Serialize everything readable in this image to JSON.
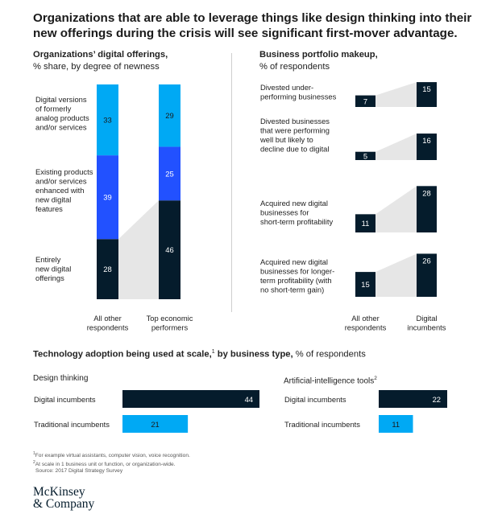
{
  "headline": "Organizations that are able to leverage things like design thinking into their new offerings during the crisis will see significant first-mover advantage.",
  "colors": {
    "navy": "#051c2c",
    "royal": "#2251ff",
    "cyan": "#00a9f4",
    "shade": "#e6e6e6",
    "divider": "#cfcfcf"
  },
  "chart_data": [
    {
      "type": "bar",
      "stacked": true,
      "title_bold": "Organizations’ digital offerings,",
      "subtitle": "% share, by degree of newness",
      "categories": [
        "All other\nrespondents",
        "Top economic\nperformers"
      ],
      "series": [
        {
          "name": "Entirely\nnew digital\nofferings",
          "values": [
            28,
            46
          ]
        },
        {
          "name": "Existing products\nand/or services\nenhanced with\nnew digital\nfeatures",
          "values": [
            39,
            25
          ]
        },
        {
          "name": "Digital versions\nof formerly\nanalog products\nand/or services",
          "values": [
            33,
            29
          ]
        }
      ],
      "ylim": [
        0,
        100
      ],
      "grid": false
    },
    {
      "type": "bar",
      "title_bold": "Business portfolio makeup,",
      "subtitle": "% of respondents",
      "categories": [
        "All other\nrespondents",
        "Digital\nincumbents"
      ],
      "rows": [
        {
          "label": "Divested under-\nperforming businesses",
          "values": [
            7,
            15
          ]
        },
        {
          "label": "Divested businesses\nthat were performing\nwell but likely to\ndecline due to digital",
          "values": [
            5,
            16
          ]
        },
        {
          "label": "Acquired new digital\nbusinesses for\nshort-term profitability",
          "values": [
            11,
            28
          ]
        },
        {
          "label": "Acquired new digital\nbusinesses for longer-\nterm profitability (with\nno short-term gain)",
          "values": [
            15,
            26
          ]
        }
      ]
    },
    {
      "type": "bar",
      "orientation": "horizontal",
      "title": "Design thinking",
      "categories": [
        "Digital incumbents",
        "Traditional incumbents"
      ],
      "values": [
        44,
        21
      ]
    },
    {
      "type": "bar",
      "orientation": "horizontal",
      "title": "Artificial-intelligence tools",
      "title_sup": "2",
      "categories": [
        "Digital incumbents",
        "Traditional incumbents"
      ],
      "values": [
        22,
        11
      ]
    }
  ],
  "tech_title": {
    "bold": "Technology adoption being used at scale,",
    "sup": "1",
    "bold2": " by business type,",
    "rest": " % of respondents"
  },
  "footnotes": {
    "n1": "For example virtual assistants, computer vision, voice recognition.",
    "n2": "At scale in 1 business unit or function, or organization-wide.",
    "source": "Source: 2017 Digital Strategy Survey",
    "n1_mark": "1",
    "n2_mark": "2"
  },
  "logo": {
    "line1": "McKinsey",
    "line2": "& Company"
  }
}
